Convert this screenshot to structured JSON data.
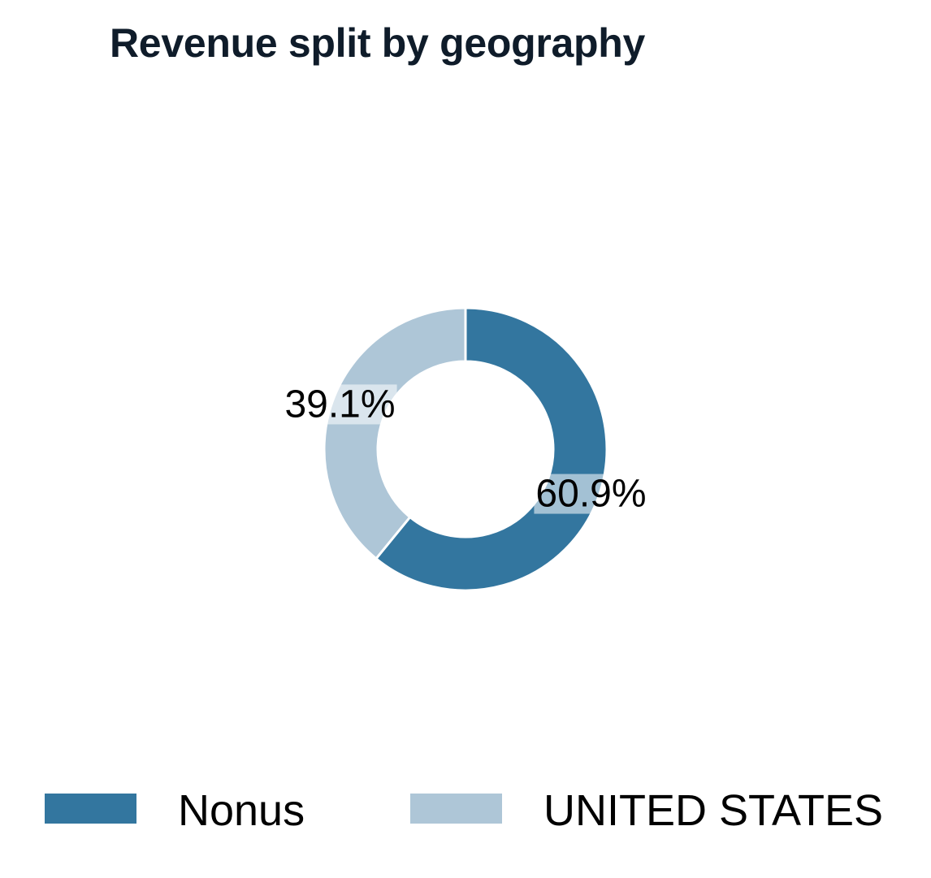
{
  "chart_data": {
    "type": "pie",
    "variant": "donut",
    "title": "Revenue split by geography",
    "slices": [
      {
        "label": "Nonus",
        "value": 60.9,
        "value_label": "60.9%",
        "color": "#33769f"
      },
      {
        "label": "UNITED STATES",
        "value": 39.1,
        "value_label": "39.1%",
        "color": "#aec6d7"
      }
    ],
    "start_angle": "12 o'clock",
    "direction": "clockwise",
    "legend_placement": "bottom"
  }
}
